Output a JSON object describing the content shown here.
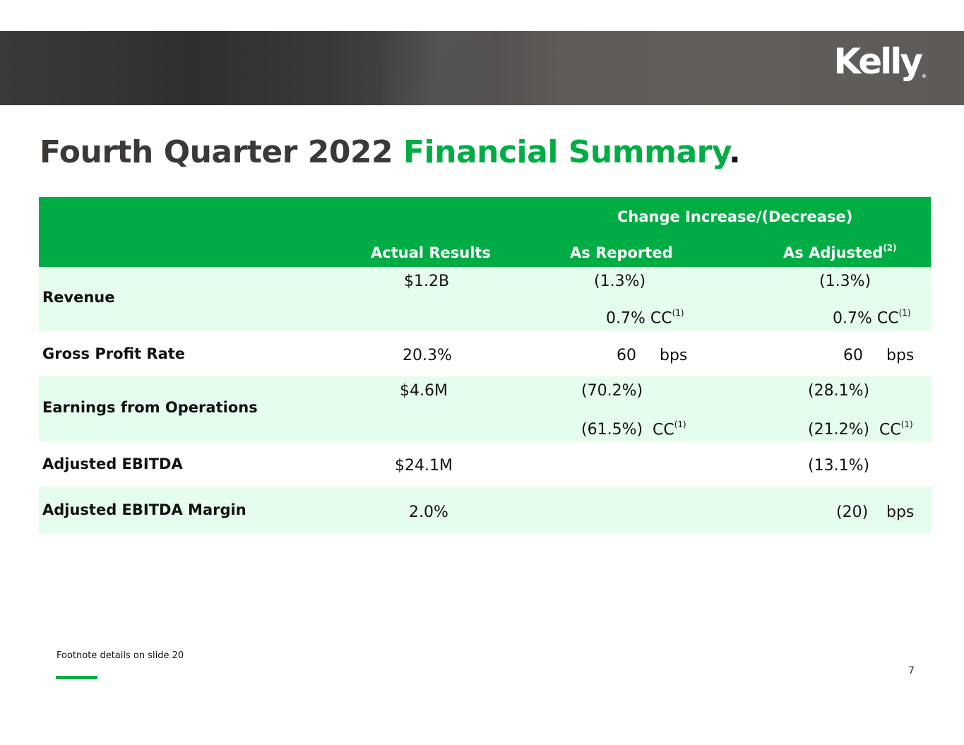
{
  "header": {
    "logo_text": "Kelly",
    "logo_mark": "®"
  },
  "title": {
    "part1": "Fourth Quarter 2022 ",
    "part2": "Financial Summary",
    "part3": "."
  },
  "table": {
    "group_header": "Change Increase/(Decrease)",
    "columns": {
      "actual": "Actual Results",
      "reported": "As Reported",
      "adjusted": "As Adjusted",
      "adjusted_note": "(2)"
    },
    "rows": {
      "revenue": {
        "label": "Revenue",
        "actual": "$1.2B",
        "reported": "(1.3%)",
        "reported_cc": "0.7% CC",
        "reported_cc_note": "(1)",
        "adjusted": "(1.3%)",
        "adjusted_cc": "0.7% CC",
        "adjusted_cc_note": "(1)"
      },
      "gross_profit": {
        "label": "Gross Profit Rate",
        "actual": "20.3%",
        "reported_num": "60",
        "reported_unit": "bps",
        "adjusted_num": "60",
        "adjusted_unit": "bps"
      },
      "earnings": {
        "label": "Earnings from Operations",
        "actual": "$4.6M",
        "reported": "(70.2%)",
        "reported_cc_num": "(61.5%)",
        "reported_cc_unit": "CC",
        "reported_cc_note": "(1)",
        "adjusted": "(28.1%)",
        "adjusted_cc_num": "(21.2%)",
        "adjusted_cc_unit": "CC",
        "adjusted_cc_note": "(1)"
      },
      "ebitda": {
        "label": "Adjusted EBITDA",
        "actual": "$24.1M",
        "adjusted": "(13.1%)"
      },
      "ebitda_margin": {
        "label": "Adjusted EBITDA Margin",
        "actual": "2.0%",
        "adjusted_num": "(20)",
        "adjusted_unit": "bps"
      }
    }
  },
  "footer": {
    "footnote": "Footnote details on slide 20",
    "page_number": "7"
  },
  "colors": {
    "accent_green": "#00ad45",
    "row_tint": "#e4fdec",
    "title_gray": "#3c3836"
  }
}
